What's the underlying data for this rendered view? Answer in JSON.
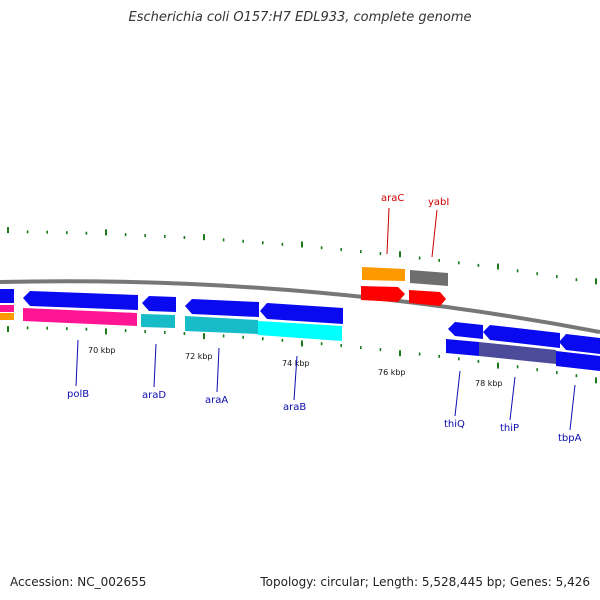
{
  "header": {
    "title": "Escherichia coli O157:H7 EDL933, complete genome"
  },
  "footer": {
    "accession": "Accession: NC_002655",
    "stats": "Topology: circular; Length: 5,528,445 bp; Genes: 5,426"
  },
  "ruler_labels": [
    {
      "text": "70 kbp"
    },
    {
      "text": "72 kbp"
    },
    {
      "text": "74 kbp"
    },
    {
      "text": "76 kbp"
    },
    {
      "text": "78 kbp"
    }
  ],
  "genes": [
    {
      "name": "polB",
      "color": "#0b0bb0"
    },
    {
      "name": "araD",
      "color": "#0b0bb0"
    },
    {
      "name": "araA",
      "color": "#0b0bb0"
    },
    {
      "name": "araB",
      "color": "#0b0bb0"
    },
    {
      "name": "araC",
      "color": "#cc0000"
    },
    {
      "name": "yabI",
      "color": "#cc0000"
    },
    {
      "name": "thiQ",
      "color": "#0b0bb0"
    },
    {
      "name": "thiP",
      "color": "#0b0bb0"
    },
    {
      "name": "tbpA",
      "color": "#0b0bb0"
    }
  ],
  "colors": {
    "cds_blue": "#0a0af0",
    "cog_magenta": "#ff1493",
    "cog_teal": "#17bcc8",
    "cog_cyan": "#00ffff",
    "cog_purple": "#4b4b9a",
    "cog_orange": "#ff9900",
    "cog_gray": "#6e6e6e",
    "cds_red": "#ff0000",
    "backbone": "#777777",
    "tick_green": "#1a7a1a"
  }
}
